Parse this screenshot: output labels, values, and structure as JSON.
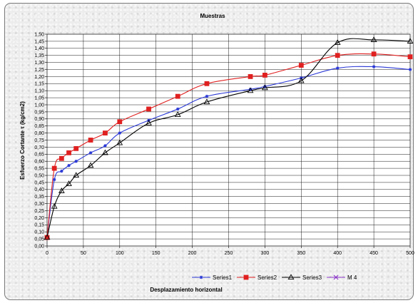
{
  "chart_data": {
    "type": "line",
    "title": "Muestras",
    "xlabel": "Desplazamiento horizontal",
    "ylabel": "Esfuerzo Cortante τ (kg/cm2)",
    "xlim": [
      0,
      500
    ],
    "ylim": [
      0,
      1.5
    ],
    "x_ticks": [
      0,
      50,
      100,
      150,
      200,
      250,
      300,
      350,
      400,
      450,
      500
    ],
    "y_ticks": [
      0,
      0.05,
      0.1,
      0.15,
      0.2,
      0.25,
      0.3,
      0.35,
      0.4,
      0.45,
      0.5,
      0.55,
      0.6,
      0.65,
      0.7,
      0.75,
      0.8,
      0.85,
      0.9,
      0.95,
      1.0,
      1.05,
      1.1,
      1.15,
      1.2,
      1.25,
      1.3,
      1.35,
      1.4,
      1.45,
      1.5
    ],
    "y_tick_labels": [
      "0,00",
      "0,05",
      "0,10",
      "0,15",
      "0,20",
      "0,25",
      "0,30",
      "0,35",
      "0,40",
      "0,45",
      "0,50",
      "0,55",
      "0,60",
      "0,65",
      "0,70",
      "0,75",
      "0,80",
      "0,85",
      "0,90",
      "0,95",
      "1,00",
      "1,05",
      "1,10",
      "1,15",
      "1,20",
      "1,25",
      "1,30",
      "1,35",
      "1,40",
      "1,45",
      "1,50"
    ],
    "grid": true,
    "legend_position": "bottom",
    "series": [
      {
        "name": "Series1",
        "color": "#2a38d6",
        "marker": "star",
        "x": [
          0,
          10,
          20,
          30,
          40,
          60,
          80,
          100,
          140,
          180,
          220,
          280,
          300,
          350,
          400,
          450,
          500
        ],
        "y": [
          0.06,
          0.47,
          0.53,
          0.57,
          0.6,
          0.66,
          0.71,
          0.8,
          0.89,
          0.97,
          1.06,
          1.11,
          1.13,
          1.19,
          1.26,
          1.27,
          1.25
        ]
      },
      {
        "name": "Series2",
        "color": "#e02020",
        "marker": "square",
        "x": [
          0,
          10,
          20,
          30,
          40,
          60,
          80,
          100,
          140,
          180,
          220,
          280,
          300,
          350,
          400,
          450,
          500
        ],
        "y": [
          0.06,
          0.55,
          0.62,
          0.66,
          0.69,
          0.75,
          0.8,
          0.88,
          0.97,
          1.06,
          1.15,
          1.2,
          1.21,
          1.28,
          1.35,
          1.36,
          1.34
        ]
      },
      {
        "name": "Series3",
        "color": "#000000",
        "marker": "triangle",
        "x": [
          0,
          10,
          20,
          30,
          40,
          60,
          80,
          100,
          140,
          180,
          220,
          280,
          300,
          350,
          400,
          450,
          500
        ],
        "y": [
          0.06,
          0.28,
          0.39,
          0.44,
          0.5,
          0.57,
          0.66,
          0.73,
          0.87,
          0.93,
          1.02,
          1.1,
          1.12,
          1.17,
          1.44,
          1.46,
          1.45
        ]
      },
      {
        "name": "M 4",
        "color": "#8b35c9",
        "marker": "x",
        "x": [],
        "y": []
      }
    ]
  }
}
